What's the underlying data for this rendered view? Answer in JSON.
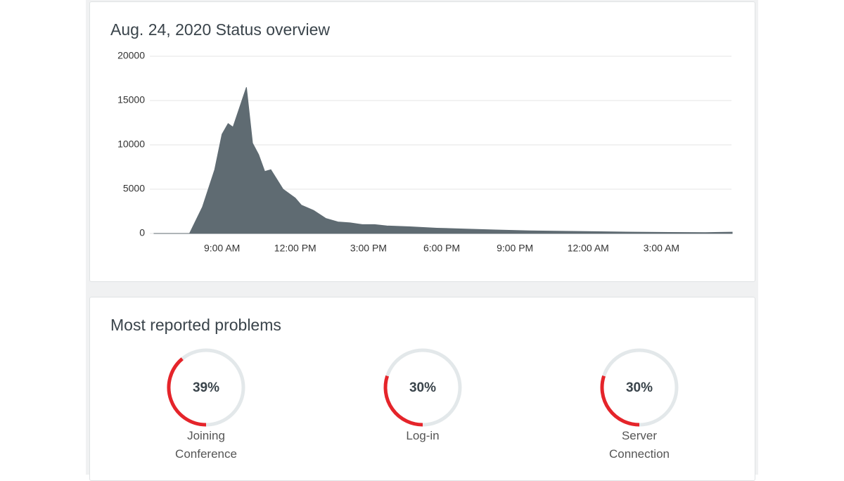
{
  "chart_data": {
    "type": "area",
    "title": "Aug. 24, 2020 Status overview",
    "x": [
      6.2,
      7.6,
      7.67,
      8.2,
      8.7,
      9.0,
      9.25,
      9.45,
      10.0,
      10.25,
      10.5,
      10.75,
      11.0,
      11.5,
      12.0,
      12.25,
      12.75,
      13.25,
      13.75,
      14.25,
      14.75,
      15.25,
      15.75,
      16.7,
      17.8,
      19.0,
      20.2,
      21.6,
      23.0,
      24.5,
      25.9,
      27.3,
      28.8,
      29.9
    ],
    "values": [
      0,
      0,
      0,
      3000,
      7200,
      11200,
      12400,
      12000,
      16500,
      10200,
      8900,
      7000,
      7200,
      5000,
      4000,
      3200,
      2600,
      1700,
      1300,
      1200,
      1000,
      1000,
      850,
      750,
      600,
      500,
      400,
      300,
      250,
      200,
      150,
      120,
      100,
      150
    ],
    "color": "#5f6b72",
    "xlim": [
      6.1,
      30.1
    ],
    "xticks": [
      {
        "value": 9,
        "label": "9:00 AM"
      },
      {
        "value": 12,
        "label": "12:00 PM"
      },
      {
        "value": 15,
        "label": "3:00 PM"
      },
      {
        "value": 18,
        "label": "6:00 PM"
      },
      {
        "value": 21,
        "label": "9:00 PM"
      },
      {
        "value": 24,
        "label": "12:00 AM"
      },
      {
        "value": 27,
        "label": "3:00 AM"
      }
    ],
    "ylim": [
      0,
      20000
    ],
    "yticks": [
      0,
      5000,
      10000,
      15000,
      20000
    ],
    "grid": true
  },
  "problems": {
    "title": "Most reported problems",
    "track_color": "#e3e8ea",
    "color": "#e5242a",
    "items": [
      {
        "label": "Joining Conference",
        "value": 39,
        "value_label": "39%"
      },
      {
        "label": "Log-in",
        "value": 30,
        "value_label": "30%"
      },
      {
        "label": "Server Connection",
        "value": 30,
        "value_label": "30%"
      }
    ]
  }
}
